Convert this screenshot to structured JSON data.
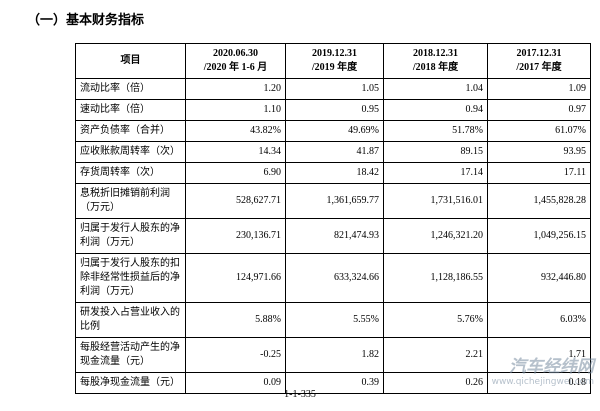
{
  "header": {
    "title": "（一）基本财务指标"
  },
  "table": {
    "columns": [
      [
        "项目"
      ],
      [
        "2020.06.30",
        "/2020 年 1-6 月"
      ],
      [
        "2019.12.31",
        "/2019 年度"
      ],
      [
        "2018.12.31",
        "/2018 年度"
      ],
      [
        "2017.12.31",
        "/2017 年度"
      ]
    ],
    "rows": [
      [
        "流动比率（倍）",
        "1.20",
        "1.05",
        "1.04",
        "1.09"
      ],
      [
        "速动比率（倍）",
        "1.10",
        "0.95",
        "0.94",
        "0.97"
      ],
      [
        "资产负债率（合并）",
        "43.82%",
        "49.69%",
        "51.78%",
        "61.07%"
      ],
      [
        "应收账款周转率（次）",
        "14.34",
        "41.87",
        "89.15",
        "93.95"
      ],
      [
        "存货周转率（次）",
        "6.90",
        "18.42",
        "17.14",
        "17.11"
      ],
      [
        "息税折旧摊销前利润（万元）",
        "528,627.71",
        "1,361,659.77",
        "1,731,516.01",
        "1,455,828.28"
      ],
      [
        "归属于发行人股东的净利润（万元）",
        "230,136.71",
        "821,474.93",
        "1,246,321.20",
        "1,049,256.15"
      ],
      [
        "归属于发行人股东的扣除非经常性损益后的净利润（万元）",
        "124,971.66",
        "633,324.66",
        "1,128,186.55",
        "932,446.80"
      ],
      [
        "研发投入占营业收入的比例",
        "5.88%",
        "5.55%",
        "5.76%",
        "6.03%"
      ],
      [
        "每股经营活动产生的净现金流量（元）",
        "-0.25",
        "1.82",
        "2.21",
        "1.71"
      ],
      [
        "每股净现金流量（元）",
        "0.09",
        "0.39",
        "0.26",
        "0.18"
      ]
    ]
  },
  "footer": {
    "page": "1-1-335"
  },
  "watermark": {
    "name": "汽车经纬网",
    "url": "www.qichejingwei.com"
  }
}
